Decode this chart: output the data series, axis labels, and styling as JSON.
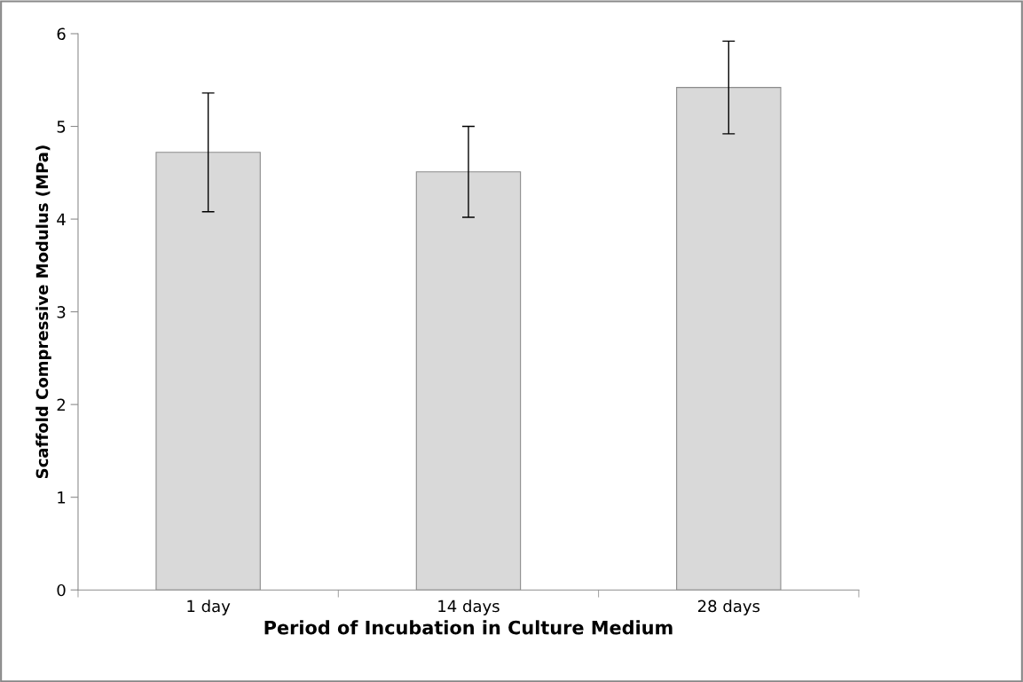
{
  "chart_data": {
    "type": "bar",
    "xlabel": "Period of Incubation in Culture Medium",
    "ylabel": "Scaffold Compressive Modulus (MPa)",
    "categories": [
      "1 day",
      "14 days",
      "28 days"
    ],
    "values": [
      4.72,
      4.51,
      5.42
    ],
    "errors": [
      0.64,
      0.49,
      0.5
    ],
    "color": "#d9d9d9",
    "ylim": [
      0,
      6
    ],
    "yticks": [
      0,
      1,
      2,
      3,
      4,
      5,
      6
    ],
    "grid": false,
    "legend": false
  }
}
